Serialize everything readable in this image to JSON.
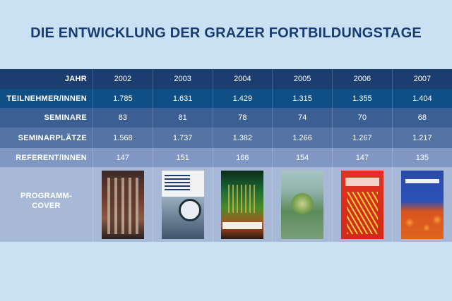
{
  "title": "DIE ENTWICKLUNG DER GRAZER FORTBILDUNGSTAGE",
  "table": {
    "labels": {
      "year": "JAHR",
      "participants": "TEILNEHMER/INNEN",
      "seminars": "SEMINARE",
      "seats": "SEMINARPLÄTZE",
      "speakers": "REFERENT/INNEN",
      "cover_line1": "PROGRAMM-",
      "cover_line2": "COVER"
    },
    "columns": [
      {
        "year": "2002",
        "participants": "1.785",
        "seminars": "83",
        "seats": "1.568",
        "speakers": "147"
      },
      {
        "year": "2003",
        "participants": "1.631",
        "seminars": "81",
        "seats": "1.737",
        "speakers": "151"
      },
      {
        "year": "2004",
        "participants": "1.429",
        "seminars": "78",
        "seats": "1.382",
        "speakers": "166"
      },
      {
        "year": "2005",
        "participants": "1.315",
        "seminars": "74",
        "seats": "1.266",
        "speakers": "154"
      },
      {
        "year": "2006",
        "participants": "1.355",
        "seminars": "70",
        "seats": "1.267",
        "speakers": "147"
      },
      {
        "year": "2007",
        "participants": "1.404",
        "seminars": "68",
        "seats": "1.217",
        "speakers": "135"
      }
    ]
  },
  "colors": {
    "background": "#c8e2f4",
    "title": "#1a3a73",
    "row_year": "#1b3d70",
    "row_participants": "#0f4f86",
    "row_seminars": "#3c5f93",
    "row_seats": "#5474a5",
    "row_speakers": "#7f97c2",
    "row_cover": "#a7b9d7"
  }
}
